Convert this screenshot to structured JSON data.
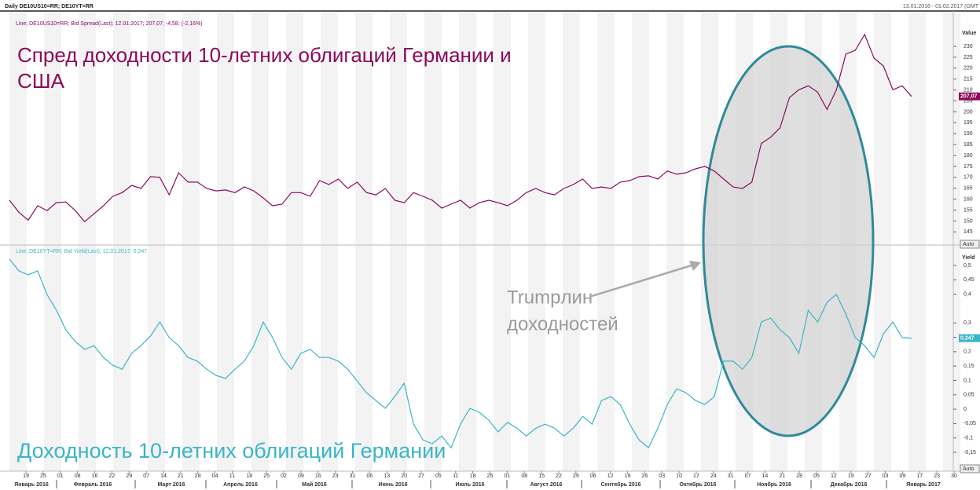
{
  "header": {
    "title": "Daily DE10US10=RR; DE10YT=RR",
    "range": "13.01.2016 - 01.02.2017 (GMT"
  },
  "chart_data": [
    {
      "type": "line",
      "title": [
        "Спред доходности 10-летних облигаций Германии и",
        "США"
      ],
      "legend": "Line; DE10US10=RR; Bid Spread(Last); 12.01.2017; 207,07; -4,58; (-2,16%)",
      "axis_label": "Value",
      "scale_mode": "Auto",
      "ylim": [
        139,
        239
      ],
      "yticks": [
        145,
        150,
        155,
        160,
        165,
        170,
        175,
        180,
        185,
        190,
        195,
        200,
        205,
        210,
        215,
        220,
        225,
        230
      ],
      "last": {
        "value": 207.07,
        "label": "207,07"
      },
      "series": [
        {
          "name": "DE10US10=RR",
          "color": "#8b0a5c",
          "values": [
            159.5,
            154,
            150.4,
            157,
            154.8,
            158.4,
            158.7,
            154.8,
            149.7,
            153.3,
            157,
            161.3,
            163,
            166.3,
            164.9,
            170.3,
            170,
            162,
            172.1,
            167.8,
            167.8,
            164.9,
            163.8,
            164.2,
            163,
            165.6,
            163.8,
            160.6,
            157,
            157.7,
            163,
            163,
            161.3,
            168.5,
            166.7,
            169.2,
            164.9,
            167.8,
            163,
            162,
            164.9,
            159.5,
            158.4,
            163,
            161.3,
            159.5,
            155.9,
            157.7,
            159.5,
            155.9,
            158.4,
            159.5,
            158.4,
            157,
            159.5,
            163,
            164.9,
            163,
            162,
            164.9,
            166.7,
            169.2,
            164.9,
            165.6,
            164.9,
            167.8,
            168.5,
            170.3,
            170.7,
            169.2,
            172.9,
            171.4,
            172.1,
            173.9,
            175,
            172.9,
            169.2,
            165.6,
            164.9,
            167.8,
            185.5,
            188.4,
            192.7,
            206.5,
            210.1,
            211.9,
            209,
            201.1,
            210.1,
            226.4,
            228.2,
            235.4,
            224.6,
            221,
            210.1,
            211.9,
            207.07
          ]
        }
      ]
    },
    {
      "type": "line",
      "title": [
        "Доходность 10-летних облигаций Германии"
      ],
      "legend": "Line; DE10YT=RR; Bid Yield(Last); 12.01.2017; 0,247",
      "axis_label": "Yield",
      "scale_mode": "Auto",
      "ylim": [
        -0.21,
        0.56
      ],
      "yticks": [
        {
          "value": 0.5,
          "label": "0,5"
        },
        {
          "value": 0.45,
          "label": "0,45"
        },
        {
          "value": 0.4,
          "label": "0,4"
        },
        {
          "value": 0.3,
          "label": "0,3"
        },
        {
          "value": 0.25,
          "label": "0,25"
        },
        {
          "value": 0.2,
          "label": "0,2"
        },
        {
          "value": 0.15,
          "label": "0,15"
        },
        {
          "value": 0.1,
          "label": "0,1"
        },
        {
          "value": 0.05,
          "label": "0,05"
        },
        0,
        {
          "value": -0.05,
          "label": "-0,05"
        },
        {
          "value": -0.1,
          "label": "-0,1"
        },
        {
          "value": -0.15,
          "label": "-0,15"
        }
      ],
      "last": {
        "value": 0.247,
        "label": "0,247"
      },
      "series": [
        {
          "name": "DE10YT=RR",
          "color": "#3ab5c6",
          "values": [
            0.522,
            0.481,
            0.467,
            0.481,
            0.399,
            0.344,
            0.276,
            0.235,
            0.208,
            0.221,
            0.18,
            0.153,
            0.139,
            0.194,
            0.221,
            0.254,
            0.303,
            0.249,
            0.221,
            0.18,
            0.167,
            0.139,
            0.117,
            0.107,
            0.139,
            0.167,
            0.221,
            0.303,
            0.249,
            0.18,
            0.139,
            0.194,
            0.208,
            0.18,
            0.18,
            0.167,
            0.139,
            0.098,
            0.057,
            0.03,
            0.003,
            0.044,
            0.09,
            -0.052,
            -0.107,
            -0.12,
            -0.093,
            -0.134,
            -0.052,
            0.003,
            -0.011,
            -0.038,
            -0.079,
            -0.046,
            -0.066,
            -0.093,
            -0.066,
            -0.052,
            -0.066,
            -0.093,
            -0.066,
            -0.025,
            -0.052,
            0.03,
            0.044,
            0.016,
            -0.052,
            -0.107,
            -0.134,
            -0.066,
            0.016,
            0.071,
            0.057,
            0.03,
            0.016,
            0.044,
            0.167,
            0.167,
            0.139,
            0.18,
            0.303,
            0.317,
            0.276,
            0.249,
            0.194,
            0.344,
            0.303,
            0.372,
            0.399,
            0.331,
            0.249,
            0.221,
            0.18,
            0.262,
            0.303,
            0.249,
            0.247
          ]
        }
      ]
    }
  ],
  "x_axis": {
    "day_labels": [
      "19",
      "25",
      "01",
      "08",
      "16",
      "22",
      "29",
      "07",
      "14",
      "21",
      "28",
      "04",
      "11",
      "18",
      "25",
      "02",
      "09",
      "16",
      "23",
      "31",
      "06",
      "13",
      "20",
      "27",
      "05",
      "11",
      "18",
      "25",
      "01",
      "08",
      "15",
      "22",
      "29",
      "06",
      "12",
      "19",
      "26",
      "03",
      "10",
      "17",
      "24",
      "31",
      "07",
      "14",
      "21",
      "28",
      "05",
      "12",
      "19",
      "27",
      "03",
      "09",
      "17",
      "23",
      "30"
    ],
    "month_labels": [
      "Январь 2016",
      "Февраль 2016",
      "Март 2016",
      "Апрель 2016",
      "Май 2016",
      "Июнь 2016",
      "Июль 2016",
      "Август 2016",
      "Сентябрь 2016",
      "Октябрь 2016",
      "Ноябрь 2016",
      "Декабрь 2016",
      "Январь 2017"
    ]
  },
  "annotation": {
    "lines": [
      "Trumpлин",
      "доходностей"
    ]
  }
}
